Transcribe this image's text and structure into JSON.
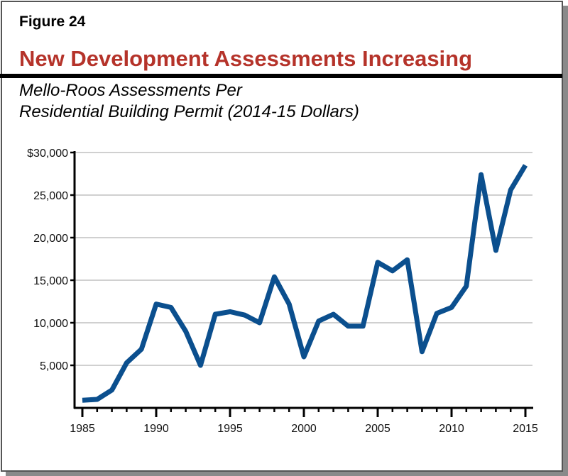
{
  "figure_label": "Figure 24",
  "title": "New Development Assessments Increasing",
  "subtitle_lines": [
    "Mello-Roos Assessments Per",
    "Residential Building Permit (2014-15 Dollars)"
  ],
  "colors": {
    "title": "#b5332a",
    "line": "#0b4f8e",
    "grid": "#b4b4b4"
  },
  "chart_data": {
    "type": "line",
    "title": "New Development Assessments Increasing",
    "subtitle": "Mello-Roos Assessments Per Residential Building Permit (2014-15 Dollars)",
    "xlabel": "",
    "ylabel": "",
    "xlim": [
      1985,
      2015
    ],
    "ylim": [
      0,
      30000
    ],
    "grid": true,
    "legend": "none",
    "x_tick_labels": [
      "1985",
      "1990",
      "1995",
      "2000",
      "2005",
      "2010",
      "2015"
    ],
    "y_tick_labels": [
      "5,000",
      "10,000",
      "15,000",
      "20,000",
      "25,000",
      "$30,000"
    ],
    "y_ticks": [
      5000,
      10000,
      15000,
      20000,
      25000,
      30000
    ],
    "x_ticks": [
      1985,
      1990,
      1995,
      2000,
      2005,
      2010,
      2015
    ],
    "x": [
      1985,
      1986,
      1987,
      1988,
      1989,
      1990,
      1991,
      1992,
      1993,
      1994,
      1995,
      1996,
      1997,
      1998,
      1999,
      2000,
      2001,
      2002,
      2003,
      2004,
      2005,
      2006,
      2007,
      2008,
      2009,
      2010,
      2011,
      2012,
      2013,
      2014,
      2015
    ],
    "series": [
      {
        "values": [
          900,
          1000,
          2100,
          5300,
          6900,
          12200,
          11800,
          9000,
          5000,
          11000,
          11300,
          10900,
          10000,
          15400,
          12200,
          6000,
          10200,
          11000,
          9600,
          9600,
          17100,
          16100,
          17400,
          6600,
          11100,
          11800,
          14300,
          27400,
          18500,
          25600,
          28500
        ]
      }
    ]
  }
}
